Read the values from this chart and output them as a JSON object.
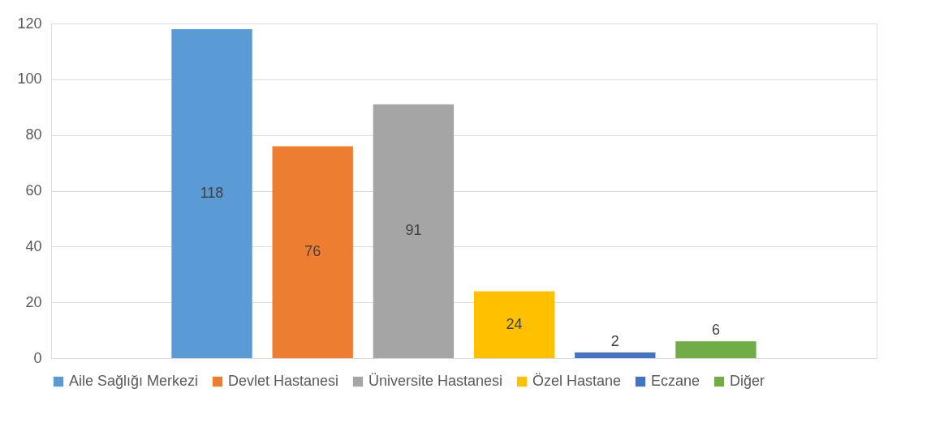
{
  "chart_data": {
    "type": "bar",
    "categories": [
      null
    ],
    "series": [
      {
        "name": "Aile Sağlığı Merkezi",
        "color": "#5b9bd5",
        "values": [
          118
        ]
      },
      {
        "name": "Devlet Hastanesi",
        "color": "#ed7d31",
        "values": [
          76
        ]
      },
      {
        "name": "Üniversite Hastanesi",
        "color": "#a5a5a5",
        "values": [
          91
        ]
      },
      {
        "name": "Özel Hastane",
        "color": "#ffc000",
        "values": [
          24
        ]
      },
      {
        "name": "Eczane",
        "color": "#4472c4",
        "values": [
          2
        ]
      },
      {
        "name": "Diğer",
        "color": "#70ad47",
        "values": [
          6
        ]
      }
    ],
    "ylim": [
      0,
      120
    ],
    "yticks": [
      0,
      20,
      40,
      60,
      80,
      100,
      120
    ],
    "grid": "y",
    "legend": "bottom",
    "data_labels": true
  }
}
